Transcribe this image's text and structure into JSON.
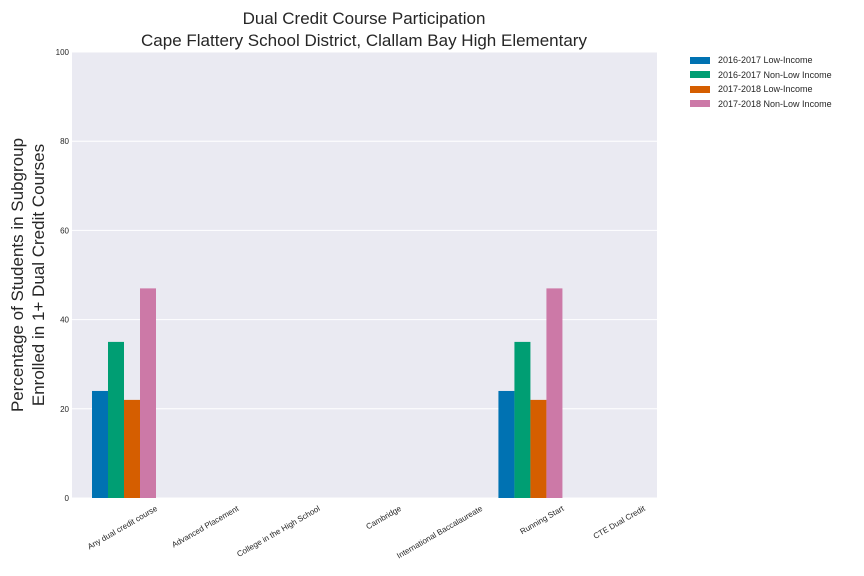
{
  "chart_data": {
    "type": "bar",
    "title": [
      "Dual Credit Course Participation",
      "Cape Flattery School District, Clallam Bay High   Elementary"
    ],
    "ylabel": [
      "Percentage of Students in Subgroup",
      "Enrolled in 1+ Dual Credit Courses"
    ],
    "xlabel": "",
    "ylim": [
      0,
      100
    ],
    "yticks": [
      0,
      20,
      40,
      60,
      80,
      100
    ],
    "grid": true,
    "legend_position": "outside-top-right",
    "categories": [
      "Any dual credit course",
      "Advanced Placement",
      "College in the High School",
      "Cambridge",
      "International Baccalaureate",
      "Running Start",
      "CTE Dual Credit"
    ],
    "series": [
      {
        "name": "2016-2017 Low-Income",
        "color": "#0072b2",
        "values": [
          24,
          0,
          0,
          0,
          0,
          24,
          0
        ]
      },
      {
        "name": "2016-2017 Non-Low Income",
        "color": "#009e73",
        "values": [
          35,
          0,
          0,
          0,
          0,
          35,
          0
        ]
      },
      {
        "name": "2017-2018 Low-Income",
        "color": "#d55e00",
        "values": [
          22,
          0,
          0,
          0,
          0,
          22,
          0
        ]
      },
      {
        "name": "2017-2018 Non-Low Income",
        "color": "#cc79a7",
        "values": [
          47,
          0,
          0,
          0,
          0,
          47,
          0
        ]
      }
    ]
  }
}
